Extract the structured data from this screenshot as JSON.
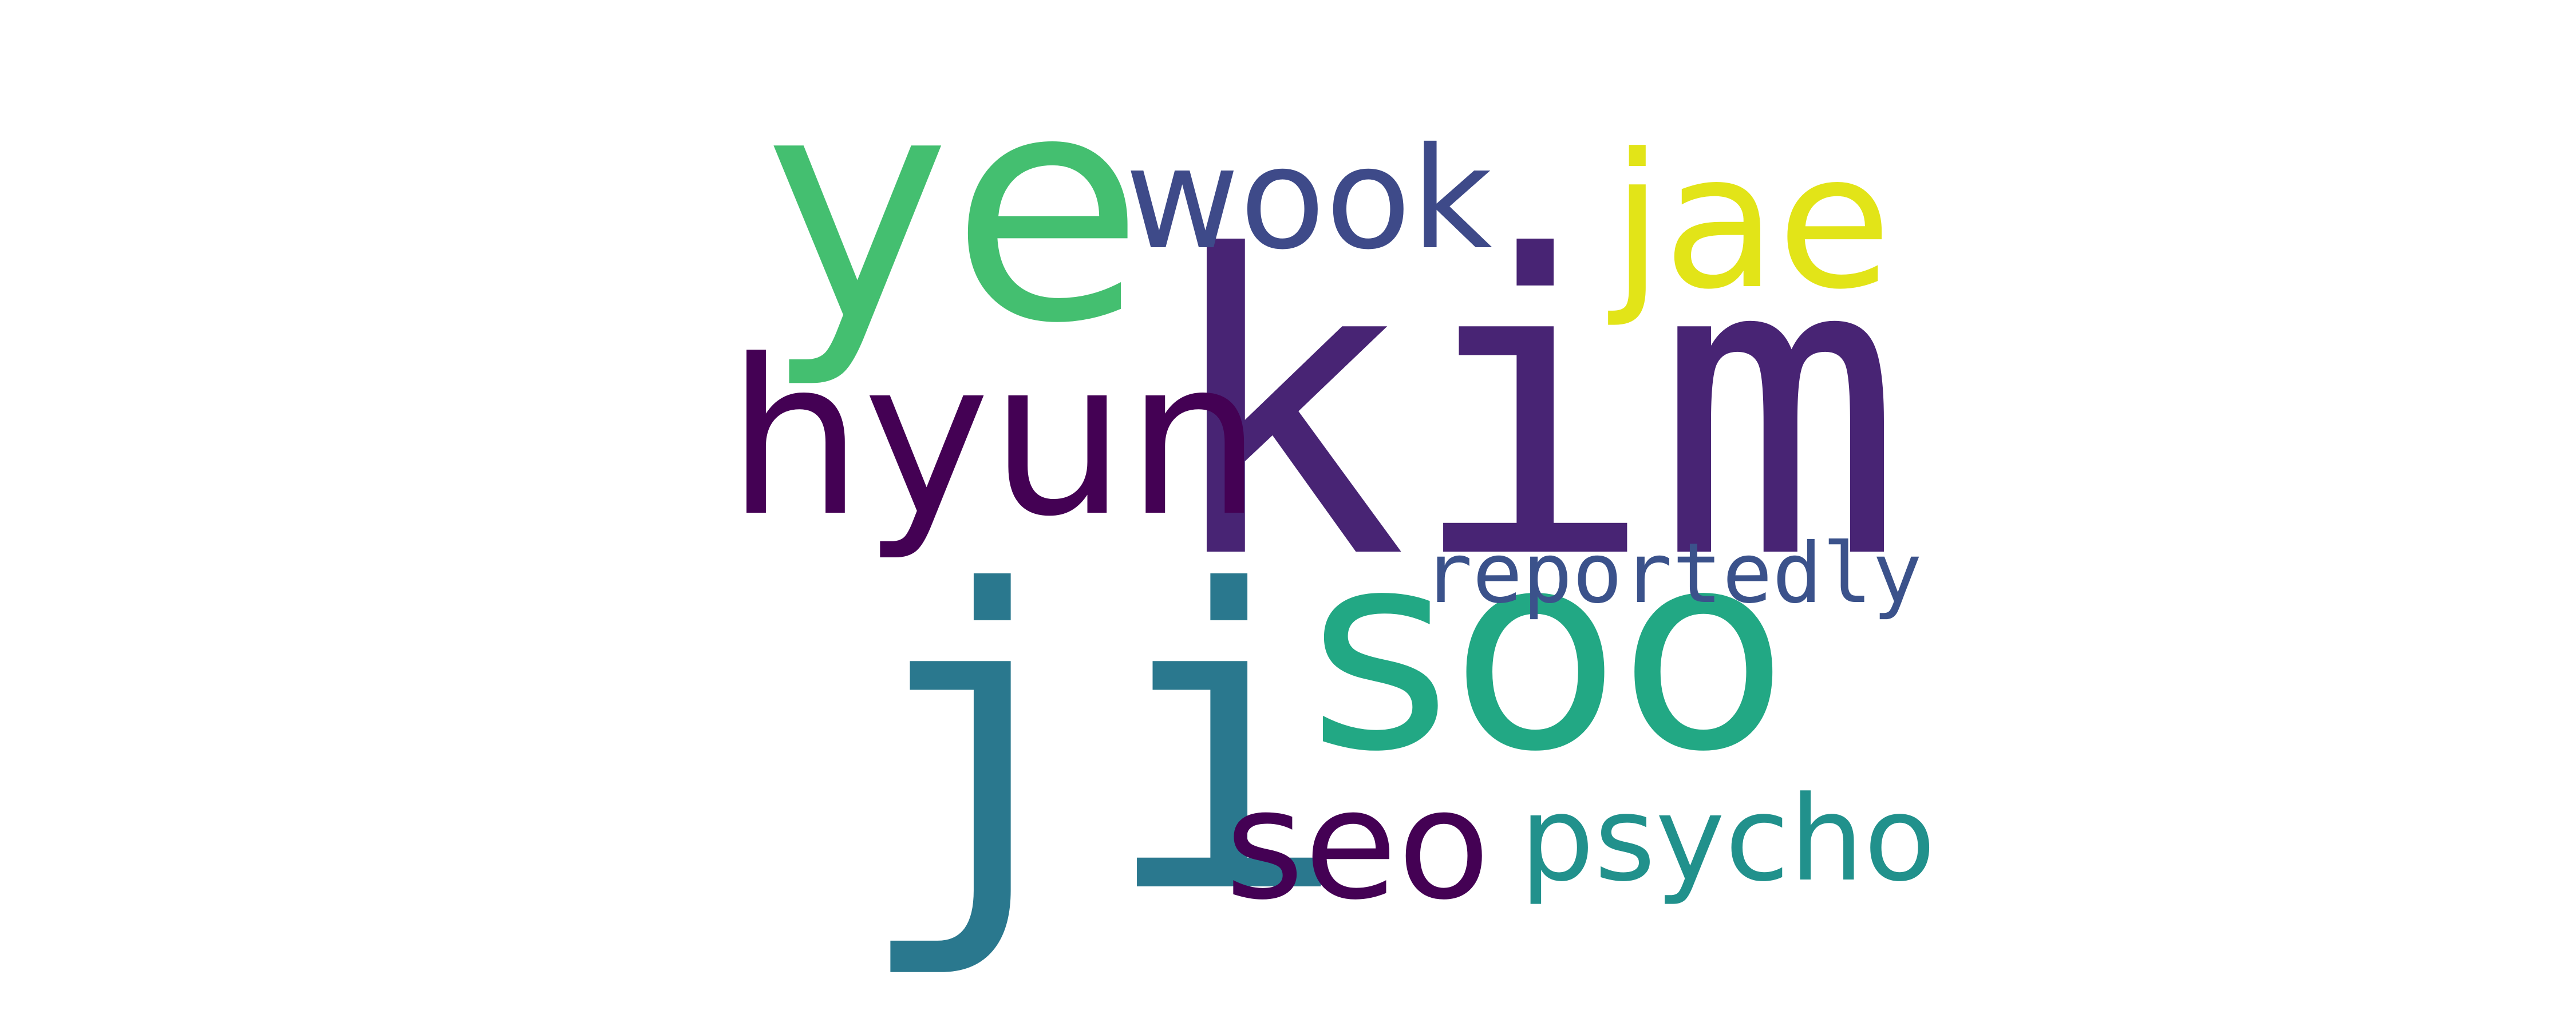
{
  "word_cloud": {
    "background": "#ffffff",
    "words": [
      {
        "id": "kim",
        "text": "kim",
        "color": "#482474",
        "font": "mono",
        "rotated": false
      },
      {
        "id": "jisoo-ji",
        "text": "ji",
        "color": "#2a788e",
        "font": "mono",
        "rotated": false
      },
      {
        "id": "jisoo-soo",
        "text": "soo",
        "color": "#22a884",
        "font": "sans",
        "rotated": false
      },
      {
        "id": "ye",
        "text": "ye",
        "color": "#44bf70",
        "font": "sans",
        "rotated": false
      },
      {
        "id": "wook",
        "text": "wook",
        "color": "#3e4a89",
        "font": "sans",
        "rotated": false
      },
      {
        "id": "jae",
        "text": "jae",
        "color": "#e2e418",
        "font": "sans",
        "rotated": false
      },
      {
        "id": "hyun",
        "text": "hyun",
        "color": "#440154",
        "font": "sans",
        "rotated": false
      },
      {
        "id": "reportedly",
        "text": "reportedly",
        "color": "#3b528b",
        "font": "mono",
        "rotated": false
      },
      {
        "id": "seo",
        "text": "seo",
        "color": "#440154",
        "font": "sans",
        "rotated": false
      },
      {
        "id": "psycho",
        "text": "psycho",
        "color": "#21918c",
        "font": "sans",
        "rotated": false
      }
    ]
  }
}
